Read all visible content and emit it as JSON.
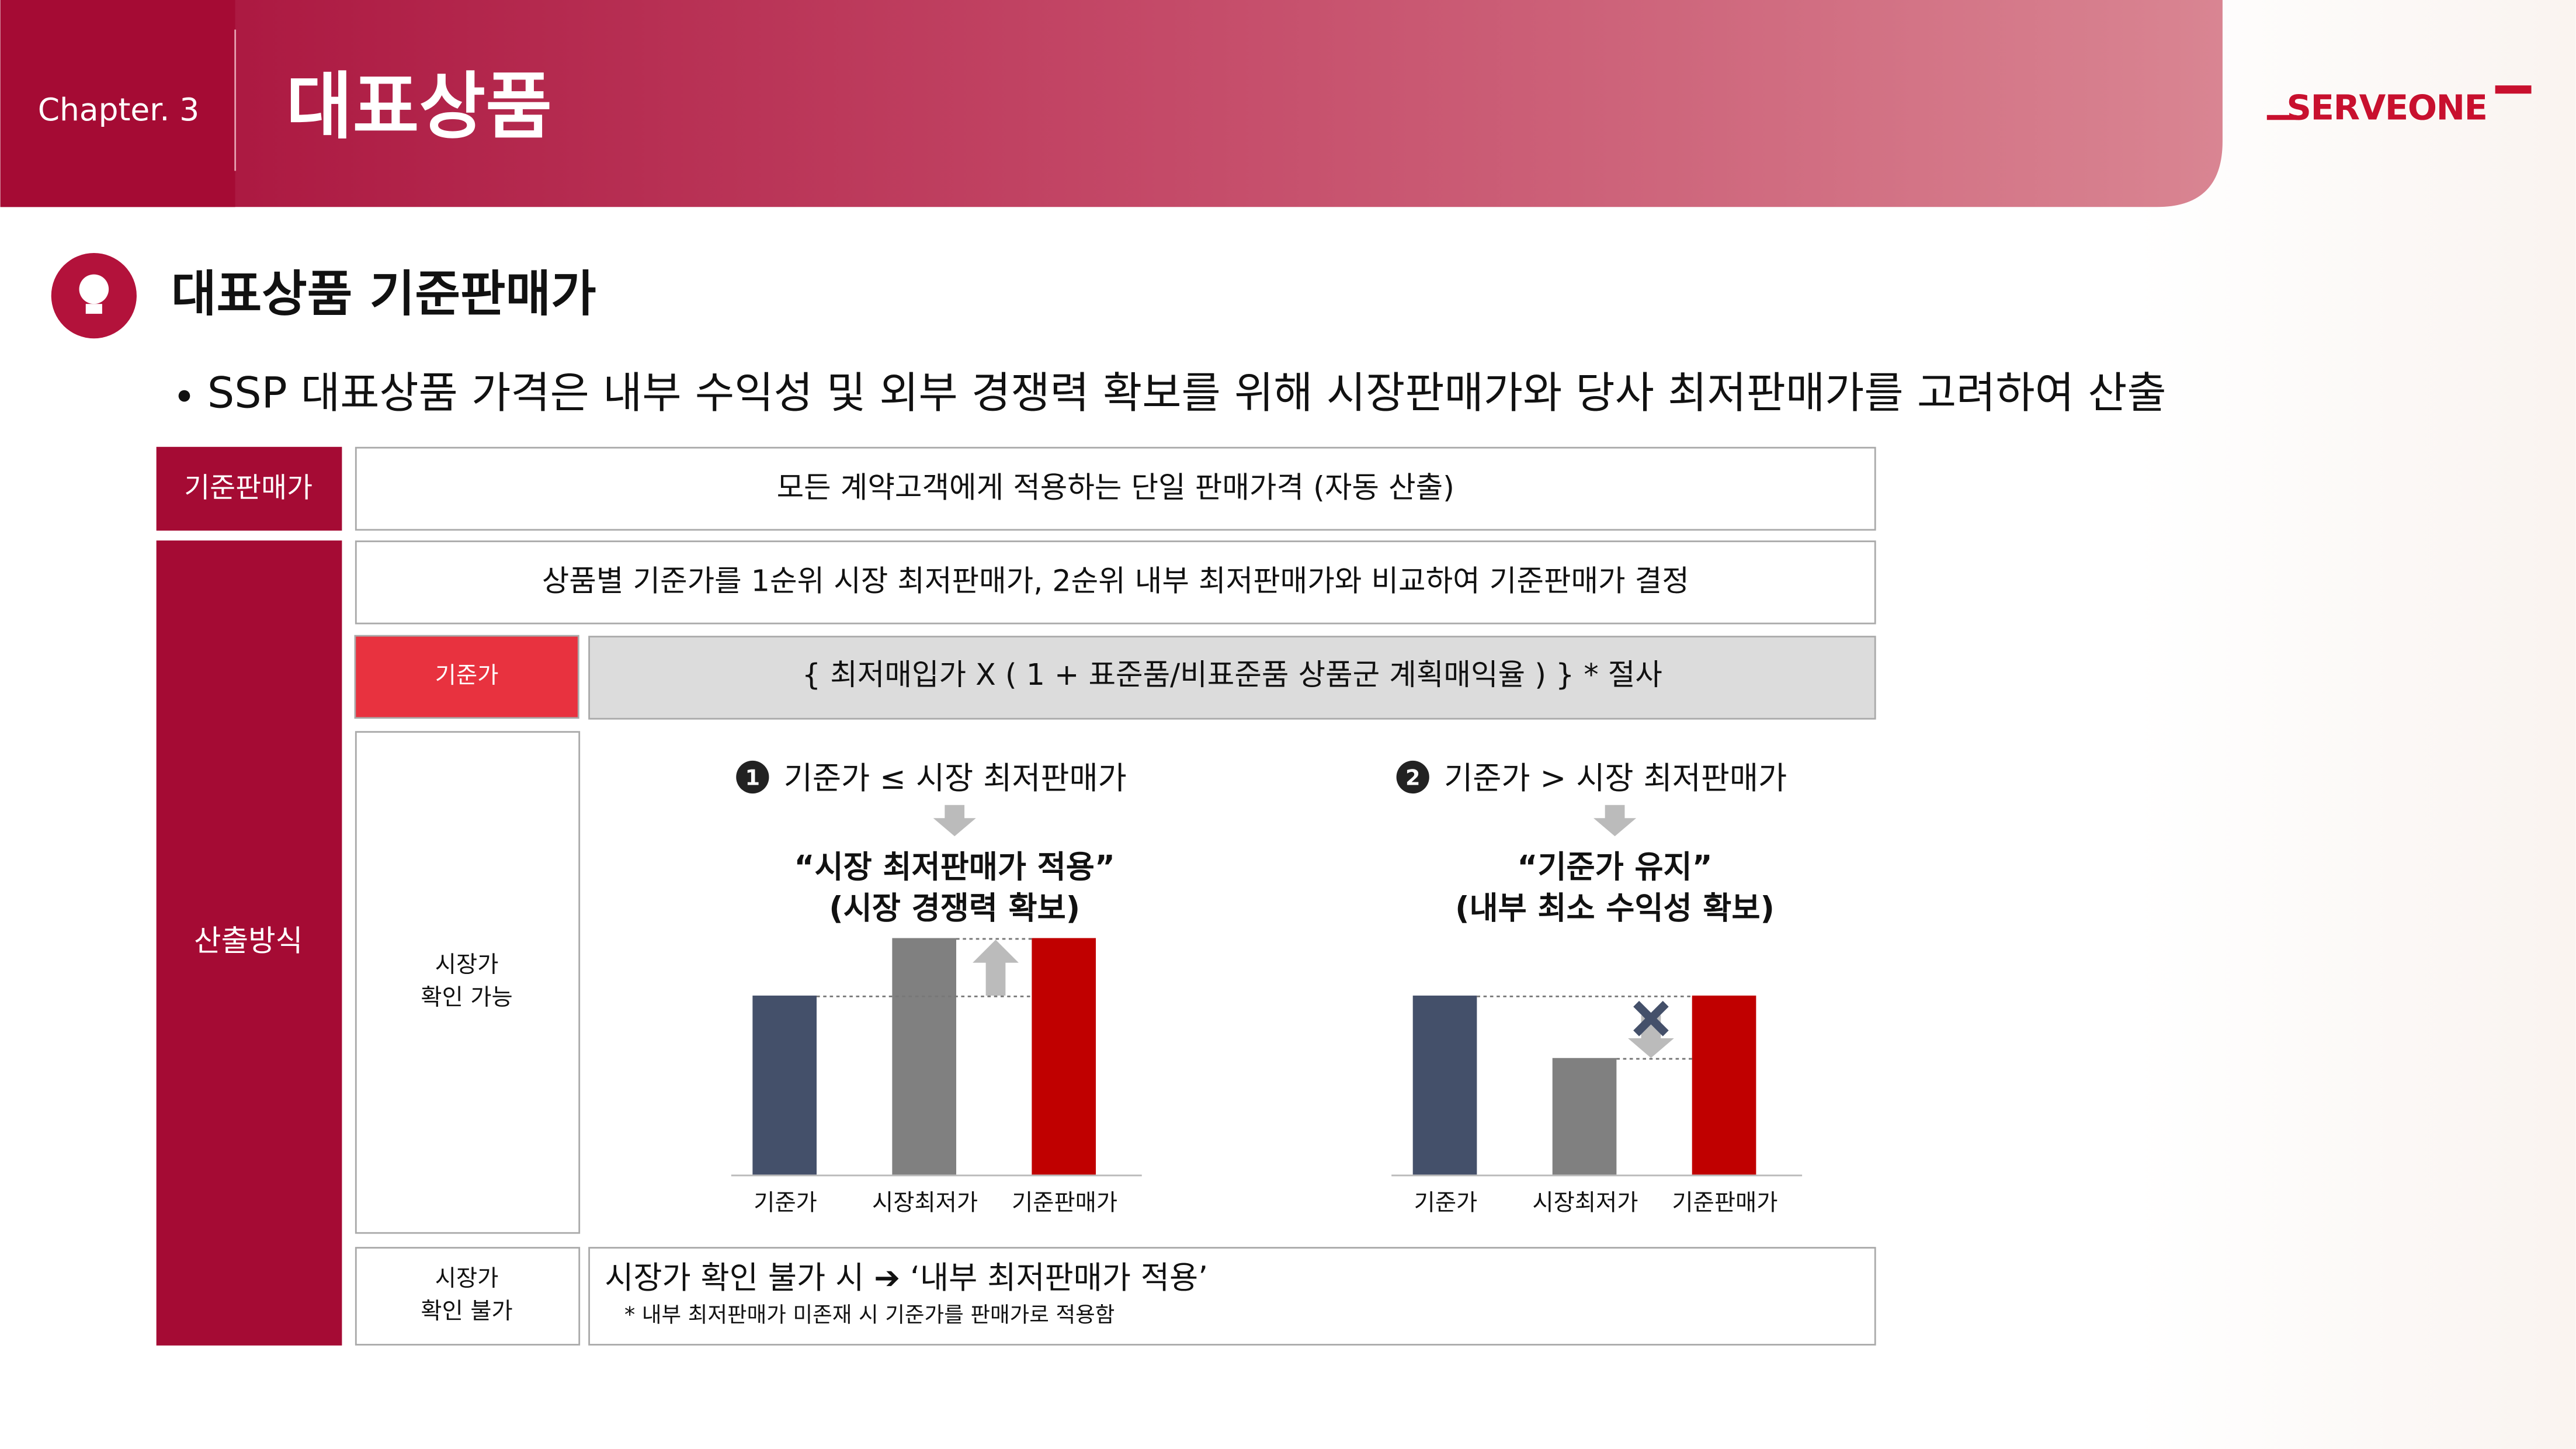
{
  "header": {
    "chapter": "Chapter. 3",
    "title": "대표상품",
    "logo": "SERVEONE"
  },
  "section": {
    "title": "대표상품 기준판매가",
    "bullet": "SSP 대표상품 가격은 내부 수익성 및 외부 경쟁력 확보를 위해 시장판매가와 당사 최저판매가를 고려하여 산출"
  },
  "base_row": {
    "label": "기준판매가",
    "content": "모든 계약고객에게 적용하는 단일 판매가격 (자동 산출)"
  },
  "method": {
    "label": "산출방식",
    "intro": "상품별 기준가를 1순위 시장 최저판매가, 2순위 내부 최저판매가와 비교하여 기준판매가 결정",
    "formula_label": "기준가",
    "formula": "{ 최저매입가 X ( 1 + 표준품/비표준품 상품군 계획매익율 ) } * 절사",
    "case_available": {
      "label": [
        "시장가",
        "확인 가능"
      ],
      "panels": [
        {
          "number": "1",
          "condition": "기준가 ≤ 시장 최저판매가",
          "result": [
            "“시장 최저판매가 적용”",
            "(시장 경쟁력 확보)"
          ],
          "bars": [
            "기준가",
            "시장최저가",
            "기준판매가"
          ]
        },
        {
          "number": "2",
          "condition": "기준가 > 시장 최저판매가",
          "result": [
            "“기준가 유지”",
            "(내부 최소 수익성 확보)"
          ],
          "bars": [
            "기준가",
            "시장최저가",
            "기준판매가"
          ]
        }
      ]
    },
    "case_unavailable": {
      "label": [
        "시장가",
        "확인 불가"
      ],
      "text": "시장가 확인 불가 시 ➔ ‘내부 최저판매가 적용’",
      "note": "* 내부 최저판매가 미존재 시 기준가를 판매가로 적용함"
    }
  }
}
